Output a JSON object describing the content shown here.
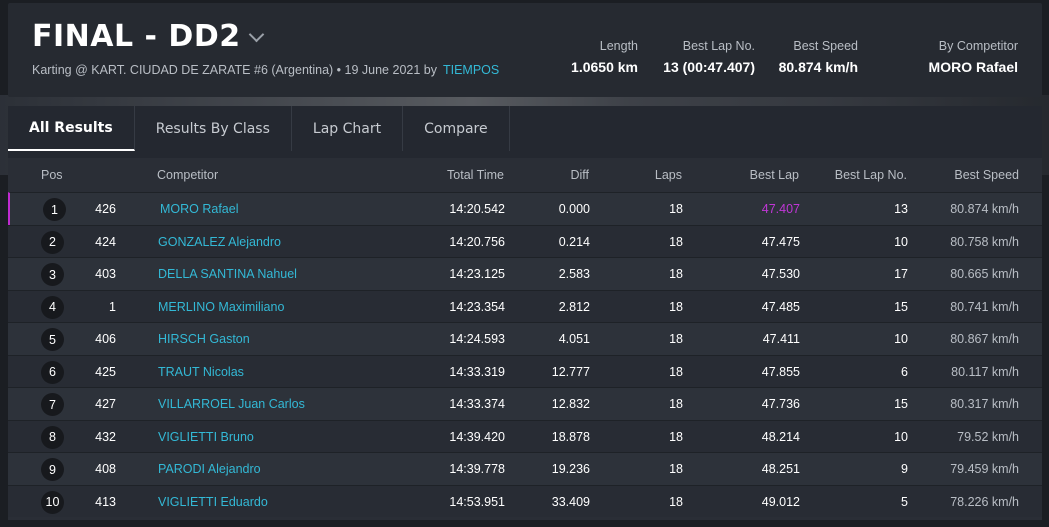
{
  "header": {
    "title": "FINAL - DD2",
    "subtitle_text": "Karting @ KART. CIUDAD DE ZARATE #6 (Argentina) • 19 June 2021 by",
    "subtitle_link": "TIEMPOS",
    "stats": [
      {
        "label": "Length",
        "value": "1.0650 km"
      },
      {
        "label": "Best Lap No.",
        "value": "13 (00:47.407)"
      },
      {
        "label": "Best Speed",
        "value": "80.874 km/h"
      },
      {
        "label": "By Competitor",
        "value": "MORO Rafael"
      }
    ]
  },
  "tabs": [
    {
      "label": "All Results",
      "active": true
    },
    {
      "label": "Results By Class",
      "active": false
    },
    {
      "label": "Lap Chart",
      "active": false
    },
    {
      "label": "Compare",
      "active": false
    }
  ],
  "table": {
    "columns": {
      "pos": "Pos",
      "competitor": "Competitor",
      "total_time": "Total Time",
      "diff": "Diff",
      "laps": "Laps",
      "best_lap": "Best Lap",
      "best_lap_no": "Best Lap No.",
      "best_speed": "Best Speed"
    },
    "rows": [
      {
        "pos": "1",
        "num": "426",
        "name": "MORO Rafael",
        "total": "14:20.542",
        "diff": "0.000",
        "laps": "18",
        "best": "47.407",
        "best_no": "13",
        "speed": "80.874 km/h"
      },
      {
        "pos": "2",
        "num": "424",
        "name": "GONZALEZ Alejandro",
        "total": "14:20.756",
        "diff": "0.214",
        "laps": "18",
        "best": "47.475",
        "best_no": "10",
        "speed": "80.758 km/h"
      },
      {
        "pos": "3",
        "num": "403",
        "name": "DELLA SANTINA Nahuel",
        "total": "14:23.125",
        "diff": "2.583",
        "laps": "18",
        "best": "47.530",
        "best_no": "17",
        "speed": "80.665 km/h"
      },
      {
        "pos": "4",
        "num": "1",
        "name": "MERLINO Maximiliano",
        "total": "14:23.354",
        "diff": "2.812",
        "laps": "18",
        "best": "47.485",
        "best_no": "15",
        "speed": "80.741 km/h"
      },
      {
        "pos": "5",
        "num": "406",
        "name": "HIRSCH Gaston",
        "total": "14:24.593",
        "diff": "4.051",
        "laps": "18",
        "best": "47.411",
        "best_no": "10",
        "speed": "80.867 km/h"
      },
      {
        "pos": "6",
        "num": "425",
        "name": "TRAUT Nicolas",
        "total": "14:33.319",
        "diff": "12.777",
        "laps": "18",
        "best": "47.855",
        "best_no": "6",
        "speed": "80.117 km/h"
      },
      {
        "pos": "7",
        "num": "427",
        "name": "VILLARROEL Juan Carlos",
        "total": "14:33.374",
        "diff": "12.832",
        "laps": "18",
        "best": "47.736",
        "best_no": "15",
        "speed": "80.317 km/h"
      },
      {
        "pos": "8",
        "num": "432",
        "name": "VIGLIETTI Bruno",
        "total": "14:39.420",
        "diff": "18.878",
        "laps": "18",
        "best": "48.214",
        "best_no": "10",
        "speed": "79.52 km/h"
      },
      {
        "pos": "9",
        "num": "408",
        "name": "PARODI Alejandro",
        "total": "14:39.778",
        "diff": "19.236",
        "laps": "18",
        "best": "48.251",
        "best_no": "9",
        "speed": "79.459 km/h"
      },
      {
        "pos": "10",
        "num": "413",
        "name": "VIGLIETTI Eduardo",
        "total": "14:53.951",
        "diff": "33.409",
        "laps": "18",
        "best": "49.012",
        "best_no": "5",
        "speed": "78.226 km/h"
      }
    ]
  },
  "colors": {
    "accent_link": "#33b9d6",
    "best_lap_highlight": "#c036d6"
  }
}
